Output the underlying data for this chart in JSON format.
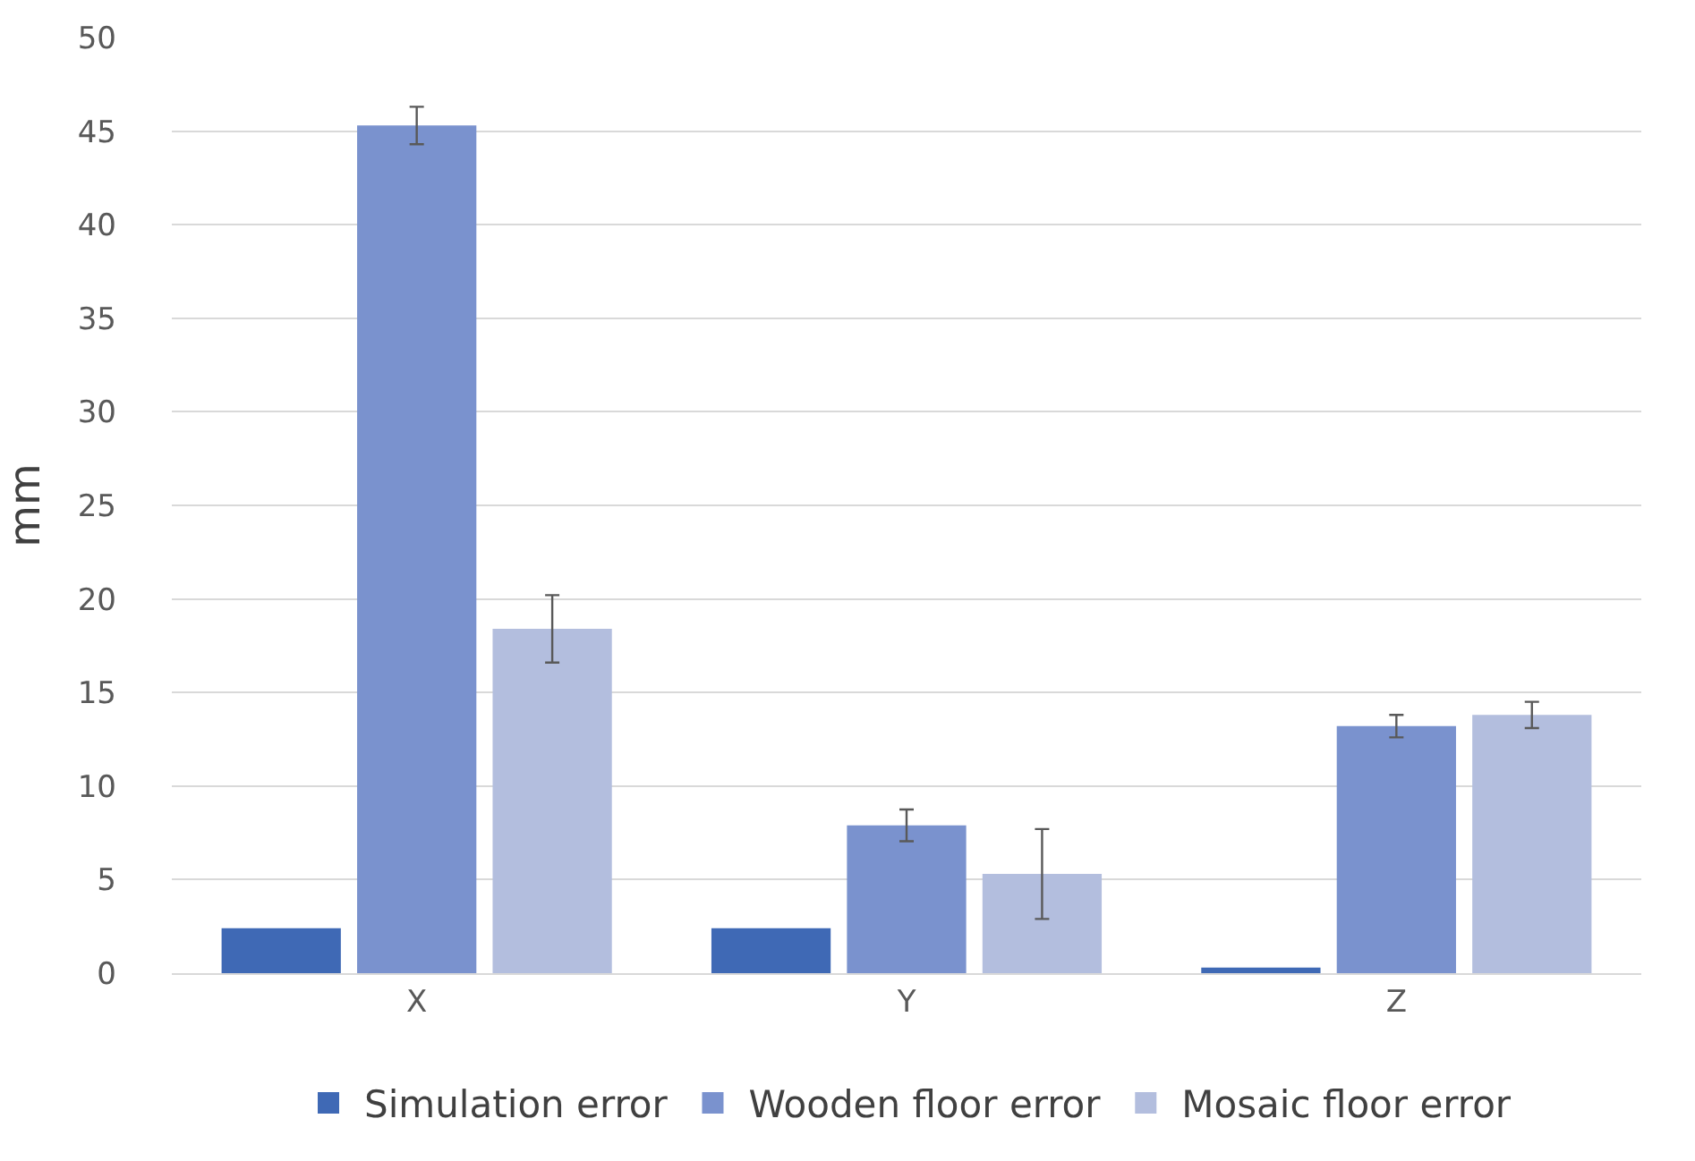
{
  "chart_data": {
    "type": "bar",
    "ylabel": "mm",
    "categories": [
      "X",
      "Y",
      "Z"
    ],
    "series": [
      {
        "name": "Simulation error",
        "color": "#3f69b5",
        "values": [
          2.4,
          2.4,
          0.3
        ]
      },
      {
        "name": "Wooden floor error",
        "color": "#7a92ce",
        "values": [
          45.3,
          7.9,
          13.2
        ],
        "errors": [
          1.0,
          0.85,
          0.6
        ]
      },
      {
        "name": "Mosaic floor error",
        "color": "#b3bede",
        "values": [
          18.4,
          5.3,
          13.8
        ],
        "errors": [
          1.8,
          2.4,
          0.7
        ]
      }
    ],
    "ylim": [
      0,
      50
    ],
    "yticks": [
      0,
      5,
      10,
      15,
      20,
      25,
      30,
      35,
      40,
      45,
      50
    ],
    "grid": "y",
    "legend": "bottom"
  }
}
